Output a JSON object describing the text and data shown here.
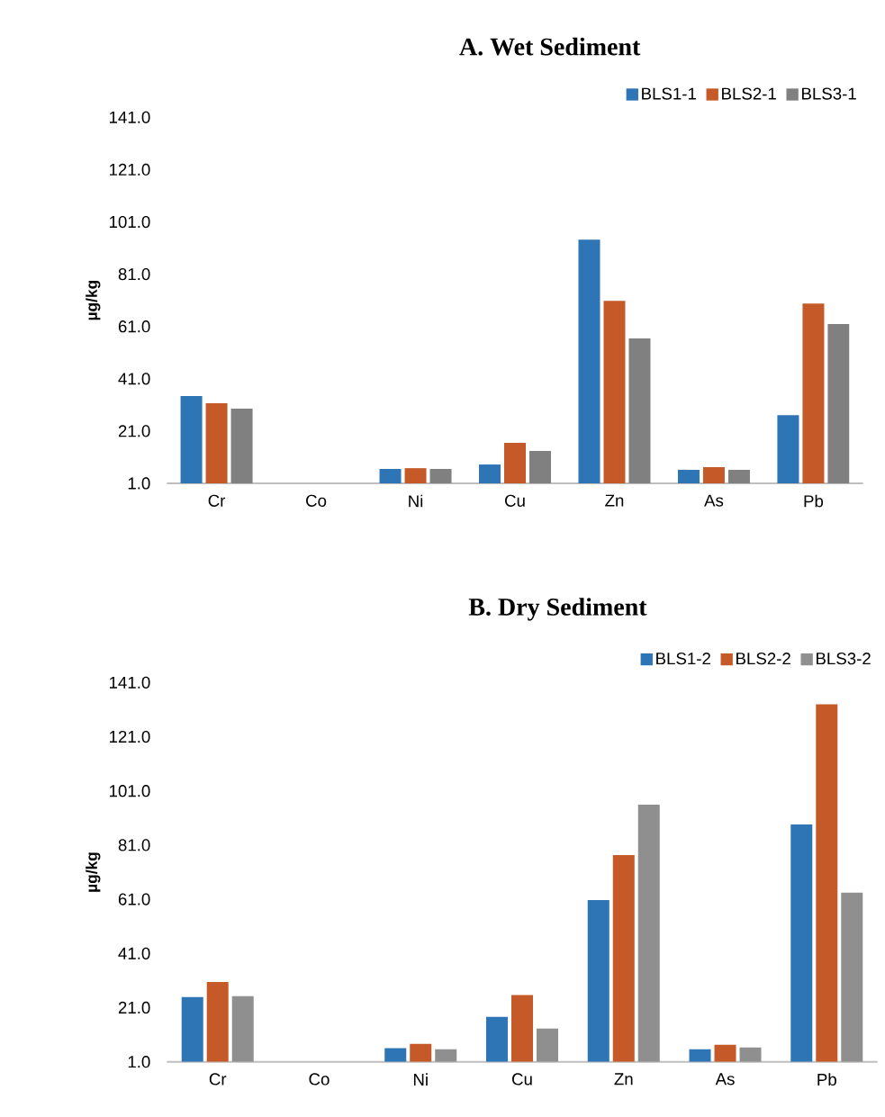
{
  "chart_data": [
    {
      "type": "bar",
      "title": "A. Wet Sediment",
      "ylabel": "µg/kg",
      "categories": [
        "Cr",
        "Co",
        "Ni",
        "Cu",
        "Zn",
        "As",
        "Pb"
      ],
      "series": [
        {
          "name": "BLS1-1",
          "color": "#2e75b6",
          "values": [
            34.4,
            null,
            6.5,
            8.2,
            94.2,
            6.2,
            27.1
          ]
        },
        {
          "name": "BLS2-1",
          "color": "#c55a28",
          "values": [
            31.6,
            null,
            6.8,
            16.5,
            70.8,
            7.2,
            69.8
          ]
        },
        {
          "name": "BLS3-1",
          "color": "#808080",
          "values": [
            29.6,
            null,
            6.5,
            13.4,
            56.4,
            6.2,
            61.9
          ]
        }
      ],
      "ylim": [
        1,
        141
      ],
      "yticks": [
        {
          "value": 1,
          "label": "1.0"
        },
        {
          "value": 21,
          "label": "21.0"
        },
        {
          "value": 41,
          "label": "41.0"
        },
        {
          "value": 61,
          "label": "61.0"
        },
        {
          "value": 81,
          "label": "81.0"
        },
        {
          "value": 101,
          "label": "101.0"
        },
        {
          "value": 121,
          "label": "121.0"
        },
        {
          "value": 141,
          "label": "141.0"
        }
      ],
      "legend": "top right"
    },
    {
      "type": "bar",
      "title": "B. Dry Sediment",
      "ylabel": "µg/kg",
      "categories": [
        "Cr",
        "Co",
        "Ni",
        "Cu",
        "Zn",
        "As",
        "Pb"
      ],
      "series": [
        {
          "name": "BLS1-2",
          "color": "#2e75b6",
          "values": [
            24.9,
            null,
            6.0,
            17.6,
            60.7,
            5.6,
            88.6
          ]
        },
        {
          "name": "BLS2-2",
          "color": "#c55a28",
          "values": [
            30.5,
            null,
            7.6,
            25.6,
            77.3,
            7.3,
            133.0
          ]
        },
        {
          "name": "BLS3-2",
          "color": "#8f8f8f",
          "values": [
            25.2,
            null,
            5.6,
            13.3,
            95.9,
            6.3,
            63.4
          ]
        }
      ],
      "ylim": [
        1,
        141
      ],
      "yticks": [
        {
          "value": 1,
          "label": "1.0"
        },
        {
          "value": 21,
          "label": "21.0"
        },
        {
          "value": 41,
          "label": "41.0"
        },
        {
          "value": 61,
          "label": "61.0"
        },
        {
          "value": 81,
          "label": "81.0"
        },
        {
          "value": 101,
          "label": "101.0"
        },
        {
          "value": 121,
          "label": "121.0"
        },
        {
          "value": 141,
          "label": "141.0"
        }
      ],
      "legend": "top right"
    }
  ]
}
